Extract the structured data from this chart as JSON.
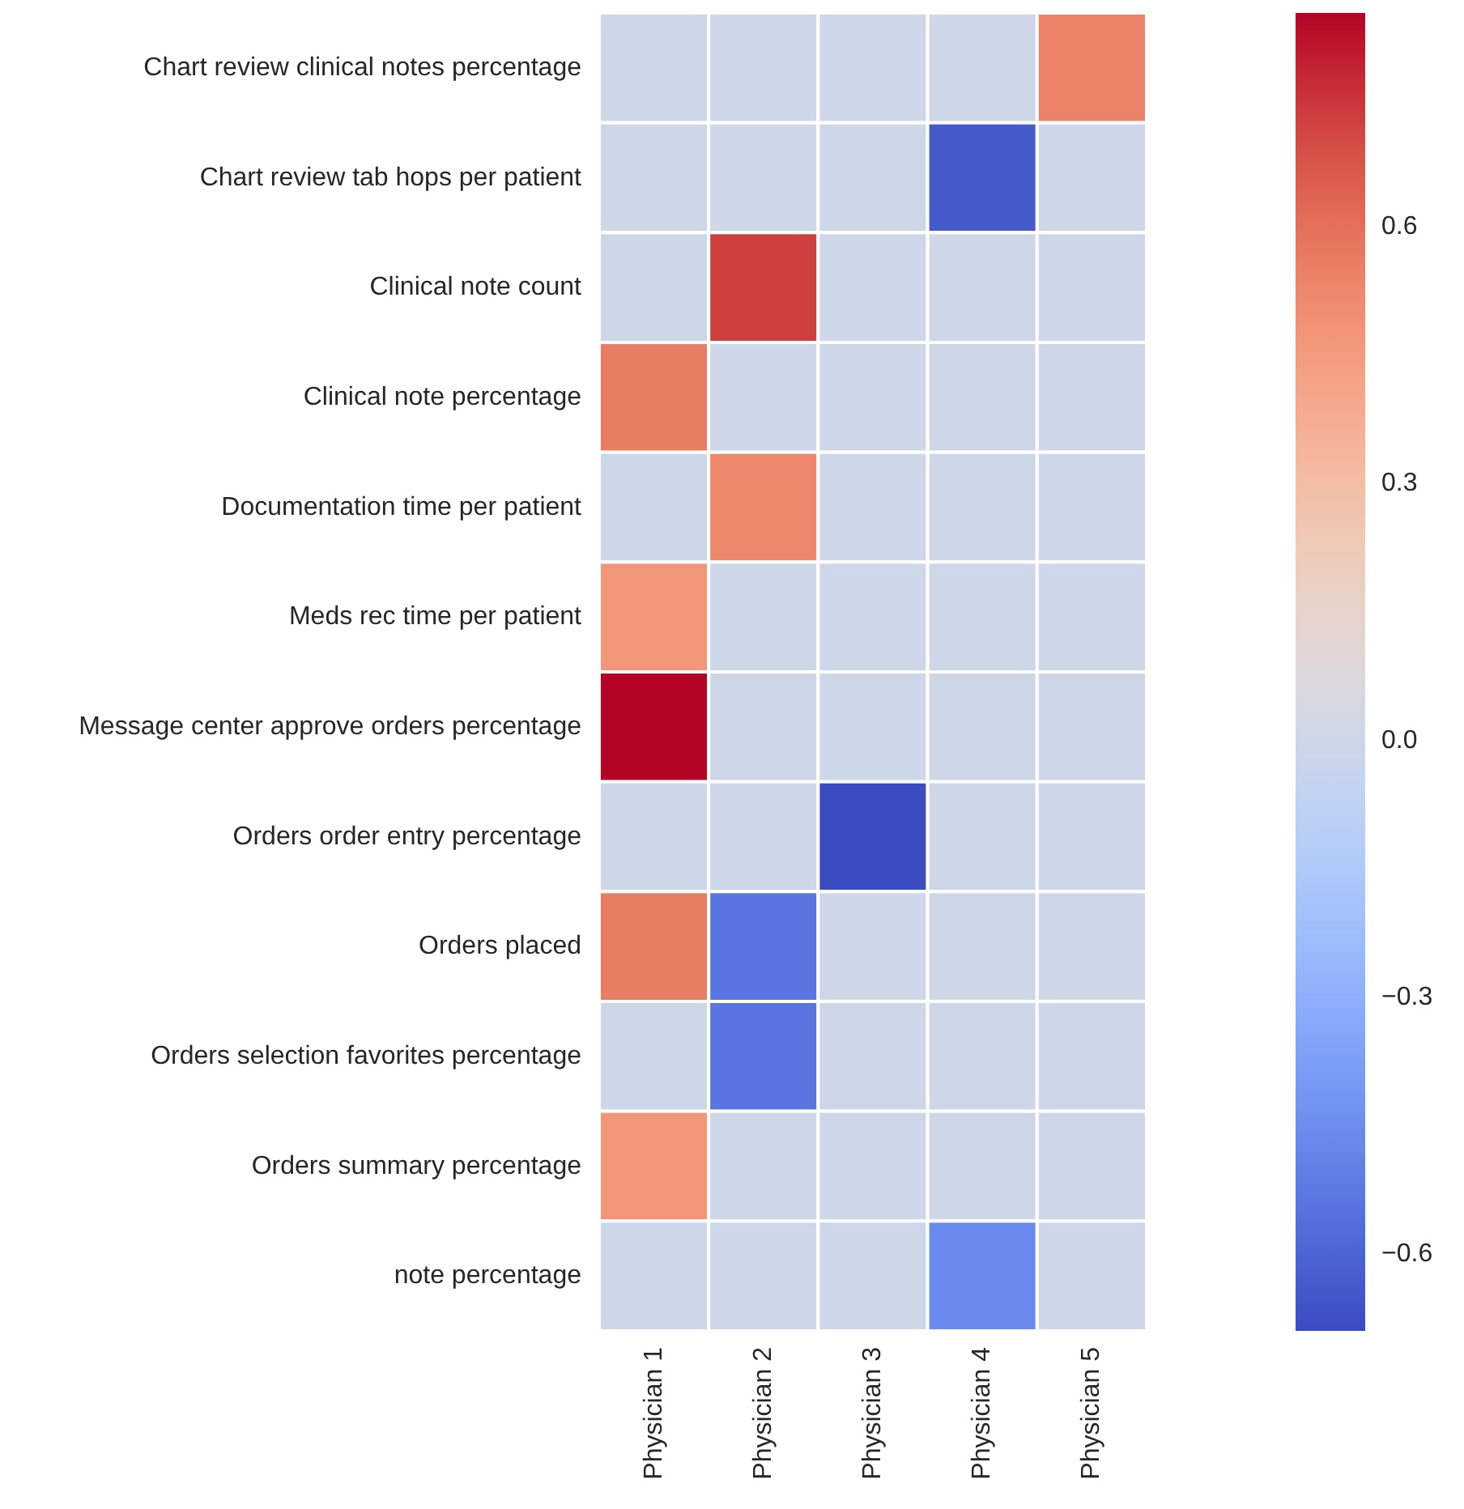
{
  "chart_data": {
    "type": "heatmap",
    "categories": [
      "Physician 1",
      "Physician 2",
      "Physician 3",
      "Physician 4",
      "Physician 5"
    ],
    "y_categories": [
      "Chart review clinical notes percentage",
      "Chart review tab hops per patient",
      "Clinical note count",
      "Clinical note percentage",
      "Documentation time per patient",
      "Meds rec time per patient",
      "Message center approve orders percentage",
      "Orders order entry percentage",
      "Orders placed",
      "Orders selection favorites percentage",
      "Orders summary percentage",
      "note percentage"
    ],
    "cells": [
      [
        0,
        0,
        0,
        0,
        0.54
      ],
      [
        0,
        0,
        0,
        -0.64,
        0
      ],
      [
        0,
        0.73,
        0,
        0,
        0
      ],
      [
        0.56,
        0,
        0,
        0,
        0
      ],
      [
        0,
        0.53,
        0,
        0,
        0
      ],
      [
        0.47,
        0,
        0,
        0,
        0
      ],
      [
        0.85,
        0,
        0,
        0,
        0
      ],
      [
        0,
        0,
        -0.69,
        0,
        0
      ],
      [
        0.56,
        -0.54,
        0,
        0,
        0
      ],
      [
        0,
        -0.54,
        0,
        0,
        0
      ],
      [
        0.47,
        0,
        0,
        0,
        0
      ],
      [
        0,
        0,
        0,
        -0.46,
        0
      ]
    ],
    "clim": [
      -0.69,
      0.85
    ],
    "cticks": [
      {
        "value": -0.6,
        "label": "−0.6"
      },
      {
        "value": -0.3,
        "label": "−0.3"
      },
      {
        "value": 0,
        "label": "0.0"
      },
      {
        "value": 0.3,
        "label": "0.3"
      },
      {
        "value": 0.6,
        "label": "0.6"
      }
    ]
  }
}
